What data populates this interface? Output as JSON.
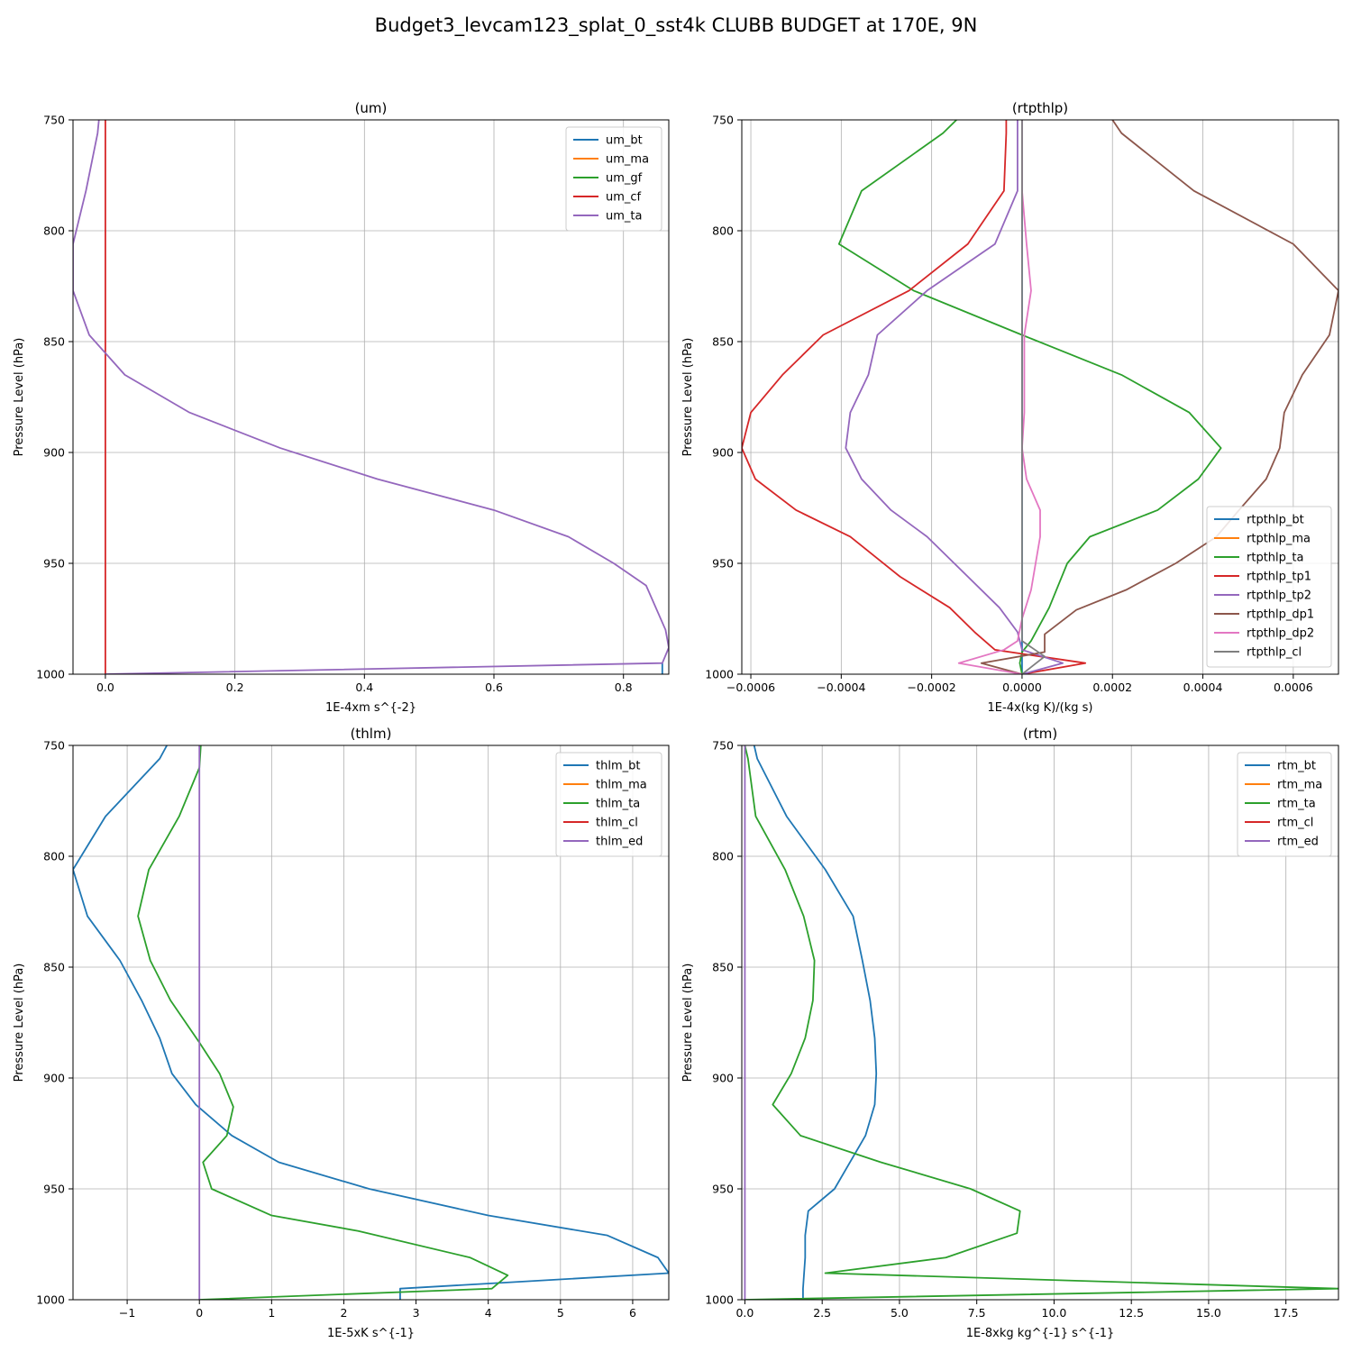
{
  "title": "Budget3_levcam123_splat_0_sst4k CLUBB BUDGET at 170E, 9N",
  "colors": {
    "C0": "#1f77b4",
    "C1": "#ff7f0e",
    "C2": "#2ca02c",
    "C3": "#d62728",
    "C4": "#9467bd",
    "C5": "#8c564b",
    "C6": "#e377c2",
    "C7": "#7f7f7f"
  },
  "chart_data": [
    {
      "type": "line",
      "title": "(um)",
      "xlabel": "1E-4xm s^{-2}",
      "ylabel": "Pressure Level (hPa)",
      "xlim": [
        -0.05,
        0.87
      ],
      "ylim": [
        1000,
        750
      ],
      "xticks": [
        0.0,
        0.2,
        0.4,
        0.6,
        0.8
      ],
      "xtick_labels": [
        "0.0",
        "0.2",
        "0.4",
        "0.6",
        "0.8"
      ],
      "yticks": [
        750,
        800,
        850,
        900,
        950,
        1000
      ],
      "ytick_labels": [
        "750",
        "800",
        "850",
        "900",
        "950",
        "1000"
      ],
      "grid": true,
      "legend": "upper right",
      "series": [
        {
          "name": "um_bt",
          "color": "C0",
          "points": [
            [
              0.86,
              1000
            ],
            [
              0.86,
              995
            ]
          ]
        },
        {
          "name": "um_ma",
          "color": "C1",
          "points": []
        },
        {
          "name": "um_gf",
          "color": "C2",
          "points": []
        },
        {
          "name": "um_cf",
          "color": "C3",
          "points": [
            [
              0.0,
              750
            ],
            [
              0.0,
              1000
            ]
          ]
        },
        {
          "name": "um_ta",
          "color": "C4",
          "points": [
            [
              -0.01,
              750
            ],
            [
              -0.012,
              756
            ],
            [
              -0.03,
              782
            ],
            [
              -0.05,
              806
            ],
            [
              -0.05,
              827
            ],
            [
              -0.025,
              847
            ],
            [
              0.03,
              865
            ],
            [
              0.13,
              882
            ],
            [
              0.27,
              898
            ],
            [
              0.42,
              912
            ],
            [
              0.6,
              926
            ],
            [
              0.715,
              938
            ],
            [
              0.785,
              950
            ],
            [
              0.835,
              960
            ],
            [
              0.865,
              980
            ],
            [
              0.87,
              988
            ],
            [
              0.86,
              995
            ],
            [
              0.0,
              1000
            ]
          ]
        }
      ]
    },
    {
      "type": "line",
      "title": "(rtpthlp)",
      "xlabel": "1E-4x(kg K)/(kg s)",
      "ylabel": "Pressure Level (hPa)",
      "xlim": [
        -0.00062,
        0.0007
      ],
      "ylim": [
        1000,
        750
      ],
      "xticks": [
        -0.0006,
        -0.0004,
        -0.0002,
        0.0,
        0.0002,
        0.0004,
        0.0006
      ],
      "xtick_labels": [
        "−0.0006",
        "−0.0004",
        "−0.0002",
        "0.0000",
        "0.0002",
        "0.0004",
        "0.0006"
      ],
      "yticks": [
        750,
        800,
        850,
        900,
        950,
        1000
      ],
      "ytick_labels": [
        "750",
        "800",
        "850",
        "900",
        "950",
        "1000"
      ],
      "grid": true,
      "legend": "lower right",
      "series": [
        {
          "name": "rtpthlp_bt",
          "color": "C0",
          "points": [
            [
              0.0,
              750
            ],
            [
              0.0,
              1000
            ]
          ]
        },
        {
          "name": "rtpthlp_ma",
          "color": "C1",
          "points": []
        },
        {
          "name": "rtpthlp_ta",
          "color": "C2",
          "points": [
            [
              -0.000145,
              750
            ],
            [
              -0.000175,
              756
            ],
            [
              -0.000355,
              782
            ],
            [
              -0.000405,
              806
            ],
            [
              -0.00024,
              827
            ],
            [
              0.0,
              847
            ],
            [
              0.00022,
              865
            ],
            [
              0.00037,
              882
            ],
            [
              0.00044,
              898
            ],
            [
              0.00039,
              912
            ],
            [
              0.0003,
              926
            ],
            [
              0.00015,
              938
            ],
            [
              0.0001,
              950
            ],
            [
              6e-05,
              970
            ],
            [
              2e-05,
              985
            ],
            [
              0.0,
              990
            ],
            [
              -5e-06,
              995
            ],
            [
              0.0,
              1000
            ]
          ]
        },
        {
          "name": "rtpthlp_tp1",
          "color": "C3",
          "points": [
            [
              -3.5e-05,
              750
            ],
            [
              -3.5e-05,
              756
            ],
            [
              -4e-05,
              782
            ],
            [
              -0.00012,
              806
            ],
            [
              -0.00025,
              827
            ],
            [
              -0.00044,
              847
            ],
            [
              -0.00053,
              865
            ],
            [
              -0.0006,
              882
            ],
            [
              -0.00062,
              898
            ],
            [
              -0.00059,
              912
            ],
            [
              -0.0005,
              926
            ],
            [
              -0.00038,
              938
            ],
            [
              -0.00027,
              956
            ],
            [
              -0.00016,
              970
            ],
            [
              -0.000105,
              981
            ],
            [
              -6e-05,
              989
            ],
            [
              0.00014,
              995
            ],
            [
              0.0,
              1000
            ]
          ]
        },
        {
          "name": "rtpthlp_tp2",
          "color": "C4",
          "points": [
            [
              -1e-05,
              750
            ],
            [
              -1e-05,
              756
            ],
            [
              -1e-05,
              782
            ],
            [
              -6e-05,
              806
            ],
            [
              -0.00021,
              827
            ],
            [
              -0.00032,
              847
            ],
            [
              -0.00034,
              865
            ],
            [
              -0.00038,
              882
            ],
            [
              -0.00039,
              898
            ],
            [
              -0.000355,
              912
            ],
            [
              -0.00029,
              926
            ],
            [
              -0.00021,
              938
            ],
            [
              -0.00012,
              956
            ],
            [
              -5e-05,
              970
            ],
            [
              -1e-05,
              981
            ],
            [
              0.0,
              989
            ],
            [
              9e-05,
              995
            ],
            [
              0.0,
              1000
            ]
          ]
        },
        {
          "name": "rtpthlp_dp1",
          "color": "C5",
          "points": [
            [
              0.0002,
              750
            ],
            [
              0.00022,
              756
            ],
            [
              0.00038,
              782
            ],
            [
              0.0006,
              806
            ],
            [
              0.0007,
              827
            ],
            [
              0.00068,
              847
            ],
            [
              0.00062,
              865
            ],
            [
              0.00058,
              882
            ],
            [
              0.00057,
              898
            ],
            [
              0.00054,
              912
            ],
            [
              0.00048,
              926
            ],
            [
              0.00043,
              938
            ],
            [
              0.00034,
              950
            ],
            [
              0.00023,
              962
            ],
            [
              0.00012,
              971
            ],
            [
              5e-05,
              982
            ],
            [
              5e-05,
              990
            ],
            [
              -9e-05,
              995
            ],
            [
              0.0,
              1000
            ]
          ]
        },
        {
          "name": "rtpthlp_dp2",
          "color": "C6",
          "points": [
            [
              0.0,
              750
            ],
            [
              0.0,
              756
            ],
            [
              0.0,
              782
            ],
            [
              1e-05,
              806
            ],
            [
              2e-05,
              827
            ],
            [
              5e-06,
              847
            ],
            [
              5e-06,
              865
            ],
            [
              5e-06,
              882
            ],
            [
              0.0,
              898
            ],
            [
              1e-05,
              912
            ],
            [
              4e-05,
              926
            ],
            [
              4e-05,
              938
            ],
            [
              3e-05,
              950
            ],
            [
              2e-05,
              962
            ],
            [
              0.0,
              975
            ],
            [
              -1e-05,
              985
            ],
            [
              -4e-05,
              989
            ],
            [
              -0.00014,
              995
            ],
            [
              0.0,
              1000
            ]
          ]
        },
        {
          "name": "rtpthlp_cl",
          "color": "C7",
          "points": [
            [
              0.0,
              750
            ],
            [
              0.0,
              985
            ],
            [
              5e-05,
              992
            ],
            [
              0.0,
              1000
            ]
          ]
        }
      ]
    },
    {
      "type": "line",
      "title": "(thlm)",
      "xlabel": "1E-5xK s^{-1}",
      "ylabel": "Pressure Level (hPa)",
      "xlim": [
        -1.75,
        6.5
      ],
      "ylim": [
        1000,
        750
      ],
      "xticks": [
        -1,
        0,
        1,
        2,
        3,
        4,
        5,
        6
      ],
      "xtick_labels": [
        "−1",
        "0",
        "1",
        "2",
        "3",
        "4",
        "5",
        "6"
      ],
      "yticks": [
        750,
        800,
        850,
        900,
        950,
        1000
      ],
      "ytick_labels": [
        "750",
        "800",
        "850",
        "900",
        "950",
        "1000"
      ],
      "grid": true,
      "legend": "upper right",
      "series": [
        {
          "name": "thlm_bt",
          "color": "C0",
          "points": [
            [
              -0.45,
              750
            ],
            [
              -0.55,
              756
            ],
            [
              -1.3,
              782
            ],
            [
              -1.75,
              806
            ],
            [
              -1.55,
              827
            ],
            [
              -1.1,
              847
            ],
            [
              -0.8,
              865
            ],
            [
              -0.55,
              882
            ],
            [
              -0.38,
              898
            ],
            [
              -0.05,
              912
            ],
            [
              0.45,
              926
            ],
            [
              1.1,
              938
            ],
            [
              2.35,
              950
            ],
            [
              4.0,
              962
            ],
            [
              5.65,
              971
            ],
            [
              6.35,
              981
            ],
            [
              6.5,
              988
            ],
            [
              2.78,
              995
            ],
            [
              2.78,
              1000
            ]
          ]
        },
        {
          "name": "thlm_ma",
          "color": "C1",
          "points": []
        },
        {
          "name": "thlm_ta",
          "color": "C2",
          "points": [
            [
              0.02,
              750
            ],
            [
              0.0,
              760
            ],
            [
              -0.28,
              782
            ],
            [
              -0.7,
              806
            ],
            [
              -0.85,
              827
            ],
            [
              -0.68,
              847
            ],
            [
              -0.4,
              865
            ],
            [
              0.0,
              884
            ],
            [
              0.28,
              898
            ],
            [
              0.47,
              913
            ],
            [
              0.38,
              926
            ],
            [
              0.05,
              938
            ],
            [
              0.17,
              950
            ],
            [
              1.0,
              962
            ],
            [
              2.2,
              969
            ],
            [
              3.75,
              981
            ],
            [
              4.27,
              989
            ],
            [
              4.05,
              995
            ],
            [
              0.0,
              1000
            ]
          ]
        },
        {
          "name": "thlm_cl",
          "color": "C3",
          "points": []
        },
        {
          "name": "thlm_ed",
          "color": "C4",
          "points": [
            [
              0.0,
              750
            ],
            [
              0.0,
              1000
            ]
          ]
        }
      ]
    },
    {
      "type": "line",
      "title": "(rtm)",
      "xlabel": "1E-8xkg kg^{-1} s^{-1}",
      "ylabel": "Pressure Level (hPa)",
      "xlim": [
        -0.1,
        19.2
      ],
      "ylim": [
        1000,
        750
      ],
      "xticks": [
        0.0,
        2.5,
        5.0,
        7.5,
        10.0,
        12.5,
        15.0,
        17.5
      ],
      "xtick_labels": [
        "0.0",
        "2.5",
        "5.0",
        "7.5",
        "10.0",
        "12.5",
        "15.0",
        "17.5"
      ],
      "yticks": [
        750,
        800,
        850,
        900,
        950,
        1000
      ],
      "ytick_labels": [
        "750",
        "800",
        "850",
        "900",
        "950",
        "1000"
      ],
      "grid": true,
      "legend": "upper right",
      "series": [
        {
          "name": "rtm_bt",
          "color": "C0",
          "points": [
            [
              0.3,
              750
            ],
            [
              0.4,
              756
            ],
            [
              1.35,
              782
            ],
            [
              2.6,
              806
            ],
            [
              3.5,
              827
            ],
            [
              3.8,
              847
            ],
            [
              4.05,
              865
            ],
            [
              4.2,
              882
            ],
            [
              4.25,
              898
            ],
            [
              4.2,
              912
            ],
            [
              3.9,
              926
            ],
            [
              3.4,
              938
            ],
            [
              2.9,
              950
            ],
            [
              2.05,
              960
            ],
            [
              1.95,
              971
            ],
            [
              1.95,
              981
            ],
            [
              1.88,
              995
            ],
            [
              1.88,
              1000
            ]
          ]
        },
        {
          "name": "rtm_ma",
          "color": "C1",
          "points": []
        },
        {
          "name": "rtm_ta",
          "color": "C2",
          "points": [
            [
              0.0,
              750
            ],
            [
              0.1,
              756
            ],
            [
              0.35,
              782
            ],
            [
              1.3,
              806
            ],
            [
              1.9,
              827
            ],
            [
              2.25,
              847
            ],
            [
              2.2,
              865
            ],
            [
              1.95,
              882
            ],
            [
              1.5,
              898
            ],
            [
              0.9,
              912
            ],
            [
              1.8,
              926
            ],
            [
              4.4,
              938
            ],
            [
              7.3,
              950
            ],
            [
              8.9,
              960
            ],
            [
              8.8,
              970
            ],
            [
              6.5,
              981
            ],
            [
              2.6,
              988
            ],
            [
              19.2,
              995
            ],
            [
              0.0,
              1000
            ]
          ]
        },
        {
          "name": "rtm_cl",
          "color": "C3",
          "points": []
        },
        {
          "name": "rtm_ed",
          "color": "C4",
          "points": [
            [
              0.0,
              750
            ],
            [
              0.0,
              1000
            ]
          ]
        }
      ]
    }
  ]
}
